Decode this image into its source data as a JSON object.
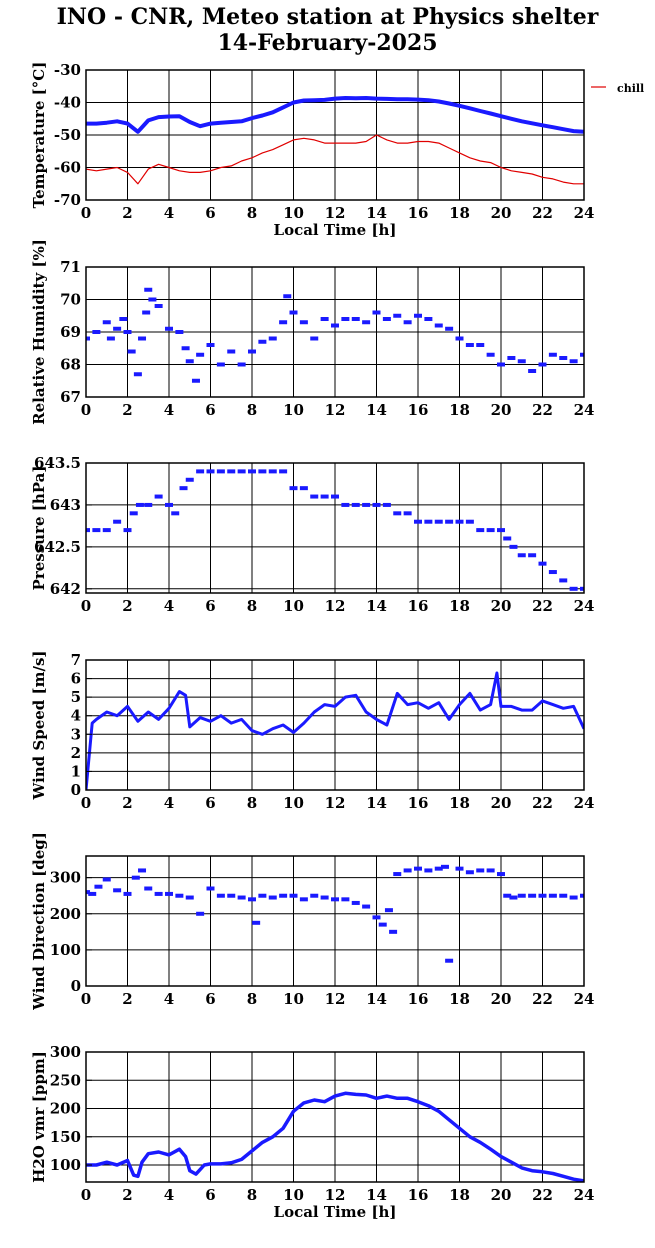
{
  "title_line1": "INO - CNR, Meteo station at Physics shelter",
  "title_line2": "14-February-2025",
  "colors": {
    "blue": "#1a1aff",
    "red": "#e00000",
    "grid": "#000000"
  },
  "chart_data": [
    {
      "type": "line",
      "id": "temperature",
      "ylabel": "Temperature [°C]",
      "xlabel": "Local Time [h]",
      "xlim": [
        0,
        24
      ],
      "xticks": [
        0,
        2,
        4,
        6,
        8,
        10,
        12,
        14,
        16,
        18,
        20,
        22,
        24
      ],
      "ylim": [
        -70,
        -30
      ],
      "yticks": [
        -70,
        -60,
        -50,
        -40,
        -30
      ],
      "legend": "top-right",
      "series": [
        {
          "name": "",
          "color": "#1a1aff",
          "width": 4,
          "x": [
            0,
            0.5,
            1,
            1.5,
            2,
            2.5,
            3,
            3.5,
            4,
            4.5,
            5,
            5.5,
            6,
            6.5,
            7,
            7.5,
            8,
            8.5,
            9,
            9.5,
            10,
            10.5,
            11,
            11.5,
            12,
            12.5,
            13,
            13.5,
            14,
            14.5,
            15,
            15.5,
            16,
            16.5,
            17,
            17.5,
            18,
            18.5,
            19,
            19.5,
            20,
            20.5,
            21,
            21.5,
            22,
            22.5,
            23,
            23.5,
            24
          ],
          "y": [
            -46.5,
            -46.5,
            -46.2,
            -45.8,
            -46.5,
            -49,
            -45.5,
            -44.5,
            -44.3,
            -44.2,
            -46,
            -47.3,
            -46.5,
            -46.2,
            -46,
            -45.8,
            -44.8,
            -44,
            -43,
            -41.5,
            -40,
            -39.4,
            -39.3,
            -39.2,
            -38.8,
            -38.6,
            -38.7,
            -38.6,
            -38.8,
            -38.9,
            -39,
            -39,
            -39.1,
            -39.3,
            -39.7,
            -40.3,
            -41,
            -41.8,
            -42.6,
            -43.4,
            -44.2,
            -45,
            -45.8,
            -46.4,
            -47,
            -47.6,
            -48.2,
            -48.8,
            -49
          ]
        },
        {
          "name": "chill",
          "color": "#e00000",
          "width": 1.2,
          "x": [
            0,
            0.5,
            1,
            1.5,
            2,
            2.5,
            3,
            3.5,
            4,
            4.5,
            5,
            5.5,
            6,
            6.5,
            7,
            7.5,
            8,
            8.5,
            9,
            9.5,
            10,
            10.5,
            11,
            11.5,
            12,
            12.5,
            13,
            13.5,
            14,
            14.5,
            15,
            15.5,
            16,
            16.5,
            17,
            17.5,
            18,
            18.5,
            19,
            19.5,
            20,
            20.5,
            21,
            21.5,
            22,
            22.5,
            23,
            23.5,
            24
          ],
          "y": [
            -60.5,
            -61,
            -60.5,
            -60,
            -61.5,
            -65,
            -60.5,
            -59,
            -60,
            -61,
            -61.5,
            -61.5,
            -61,
            -60,
            -59.5,
            -58,
            -57,
            -55.5,
            -54.5,
            -53,
            -51.5,
            -51,
            -51.5,
            -52.5,
            -52.5,
            -52.5,
            -52.5,
            -52,
            -50,
            -51.5,
            -52.5,
            -52.5,
            -52,
            -52,
            -52.5,
            -54,
            -55.5,
            -57,
            -58,
            -58.5,
            -60,
            -61,
            -61.5,
            -62,
            -63,
            -63.5,
            -64.5,
            -65,
            -65
          ]
        }
      ]
    },
    {
      "type": "scatter",
      "id": "humidity",
      "ylabel": "Relative Humidity [%]",
      "xlim": [
        0,
        24
      ],
      "xticks": [
        0,
        2,
        4,
        6,
        8,
        10,
        12,
        14,
        16,
        18,
        20,
        22,
        24
      ],
      "ylim": [
        67,
        71
      ],
      "yticks": [
        67,
        68,
        69,
        70,
        71
      ],
      "series": [
        {
          "name": "",
          "color": "#1a1aff",
          "x": [
            0,
            0.5,
            1,
            1.2,
            1.5,
            1.8,
            2,
            2.2,
            2.5,
            2.7,
            2.9,
            3,
            3.2,
            3.5,
            4,
            4.5,
            4.8,
            5,
            5.3,
            5.5,
            6,
            6.5,
            7,
            7.5,
            8,
            8.5,
            9,
            9.5,
            9.7,
            10,
            10.5,
            11,
            11.5,
            12,
            12.5,
            13,
            13.5,
            14,
            14.5,
            15,
            15.5,
            16,
            16.5,
            17,
            17.5,
            18,
            18.5,
            19,
            19.5,
            20,
            20.5,
            21,
            21.5,
            22,
            22.5,
            23,
            23.5,
            24
          ],
          "y": [
            68.8,
            69,
            69.3,
            68.8,
            69.1,
            69.4,
            69,
            68.4,
            67.7,
            68.8,
            69.6,
            70.3,
            70,
            69.8,
            69.1,
            69,
            68.5,
            68.1,
            67.5,
            68.3,
            68.6,
            68,
            68.4,
            68,
            68.4,
            68.7,
            68.8,
            69.3,
            70.1,
            69.6,
            69.3,
            68.8,
            69.4,
            69.2,
            69.4,
            69.4,
            69.3,
            69.6,
            69.4,
            69.5,
            69.3,
            69.5,
            69.4,
            69.2,
            69.1,
            68.8,
            68.6,
            68.6,
            68.3,
            68,
            68.2,
            68.1,
            67.8,
            68,
            68.3,
            68.2,
            68.1,
            68.3
          ]
        }
      ]
    },
    {
      "type": "scatter",
      "id": "pressure",
      "ylabel": "Pressure [hPa]",
      "xlim": [
        0,
        24
      ],
      "xticks": [
        0,
        2,
        4,
        6,
        8,
        10,
        12,
        14,
        16,
        18,
        20,
        22,
        24
      ],
      "ylim": [
        641.95,
        643.5
      ],
      "yticks": [
        642,
        642.5,
        643,
        643.5
      ],
      "series": [
        {
          "name": "",
          "color": "#1a1aff",
          "x": [
            0,
            0.5,
            1,
            1.5,
            2,
            2.3,
            2.6,
            3,
            3.5,
            4,
            4.3,
            4.7,
            5,
            5.5,
            6,
            6.5,
            7,
            7.5,
            8,
            8.5,
            9,
            9.5,
            10,
            10.5,
            11,
            11.5,
            12,
            12.5,
            13,
            13.5,
            14,
            14.5,
            15,
            15.5,
            16,
            16.5,
            17,
            17.5,
            18,
            18.5,
            19,
            19.5,
            20,
            20.3,
            20.6,
            21,
            21.5,
            22,
            22.5,
            23,
            23.5,
            24
          ],
          "y": [
            642.7,
            642.7,
            642.7,
            642.8,
            642.7,
            642.9,
            643,
            643,
            643.1,
            643,
            642.9,
            643.2,
            643.3,
            643.4,
            643.4,
            643.4,
            643.4,
            643.4,
            643.4,
            643.4,
            643.4,
            643.4,
            643.2,
            643.2,
            643.1,
            643.1,
            643.1,
            643,
            643,
            643,
            643,
            643,
            642.9,
            642.9,
            642.8,
            642.8,
            642.8,
            642.8,
            642.8,
            642.8,
            642.7,
            642.7,
            642.7,
            642.6,
            642.5,
            642.4,
            642.4,
            642.3,
            642.2,
            642.1,
            642,
            642
          ]
        }
      ]
    },
    {
      "type": "line",
      "id": "wind_speed",
      "ylabel": "Wind Speed [m/s]",
      "xlim": [
        0,
        24
      ],
      "xticks": [
        0,
        2,
        4,
        6,
        8,
        10,
        12,
        14,
        16,
        18,
        20,
        22,
        24
      ],
      "ylim": [
        0,
        7
      ],
      "yticks": [
        0,
        1,
        2,
        3,
        4,
        5,
        6,
        7
      ],
      "series": [
        {
          "name": "",
          "color": "#1a1aff",
          "width": 3,
          "x": [
            0,
            0.3,
            0.5,
            1,
            1.5,
            2,
            2.5,
            3,
            3.5,
            4,
            4.5,
            4.8,
            5,
            5.5,
            6,
            6.5,
            7,
            7.5,
            8,
            8.5,
            9,
            9.5,
            10,
            10.5,
            11,
            11.5,
            12,
            12.5,
            13,
            13.5,
            14,
            14.5,
            15,
            15.5,
            16,
            16.5,
            17,
            17.5,
            18,
            18.5,
            19,
            19.5,
            19.8,
            20,
            20.5,
            21,
            21.5,
            22,
            22.5,
            23,
            23.5,
            24
          ],
          "y": [
            0,
            3.6,
            3.8,
            4.2,
            4,
            4.5,
            3.7,
            4.2,
            3.8,
            4.4,
            5.3,
            5.1,
            3.4,
            3.9,
            3.7,
            4,
            3.6,
            3.8,
            3.2,
            3,
            3.3,
            3.5,
            3.1,
            3.6,
            4.2,
            4.6,
            4.5,
            5,
            5.1,
            4.2,
            3.8,
            3.5,
            5.2,
            4.6,
            4.7,
            4.4,
            4.7,
            3.8,
            4.6,
            5.2,
            4.3,
            4.6,
            6.3,
            4.5,
            4.5,
            4.3,
            4.3,
            4.8,
            4.6,
            4.4,
            4.5,
            3.3
          ]
        }
      ]
    },
    {
      "type": "scatter",
      "id": "wind_direction",
      "ylabel": "Wind Direction [deg]",
      "xlim": [
        0,
        24
      ],
      "xticks": [
        0,
        2,
        4,
        6,
        8,
        10,
        12,
        14,
        16,
        18,
        20,
        22,
        24
      ],
      "ylim": [
        0,
        360
      ],
      "yticks": [
        0,
        100,
        200,
        300
      ],
      "series": [
        {
          "name": "",
          "color": "#1a1aff",
          "x": [
            0,
            0.3,
            0.6,
            1,
            1.5,
            2,
            2.4,
            2.7,
            3,
            3.5,
            4,
            4.5,
            5,
            5.5,
            6,
            6.5,
            7,
            7.5,
            8,
            8.2,
            8.5,
            9,
            9.5,
            10,
            10.5,
            11,
            11.5,
            12,
            12.5,
            13,
            13.5,
            14,
            14.3,
            14.6,
            14.8,
            15,
            15.5,
            16,
            16.5,
            17,
            17.3,
            17.5,
            18,
            18.5,
            19,
            19.5,
            20,
            20.3,
            20.6,
            21,
            21.5,
            22,
            22.5,
            23,
            23.5,
            24
          ],
          "y": [
            260,
            255,
            275,
            295,
            265,
            255,
            300,
            320,
            270,
            255,
            255,
            250,
            245,
            200,
            270,
            250,
            250,
            245,
            240,
            175,
            250,
            245,
            250,
            250,
            240,
            250,
            245,
            240,
            240,
            230,
            220,
            190,
            170,
            210,
            150,
            310,
            320,
            325,
            320,
            325,
            330,
            70,
            325,
            315,
            320,
            320,
            310,
            250,
            245,
            250,
            250,
            250,
            250,
            250,
            245,
            250
          ]
        }
      ]
    },
    {
      "type": "line",
      "id": "h2o_vmr",
      "ylabel": "H2O vmr [ppm]",
      "xlabel": "Local Time [h]",
      "xlim": [
        0,
        24
      ],
      "xticks": [
        0,
        2,
        4,
        6,
        8,
        10,
        12,
        14,
        16,
        18,
        20,
        22,
        24
      ],
      "ylim": [
        70,
        300
      ],
      "yticks": [
        100,
        150,
        200,
        250,
        300
      ],
      "series": [
        {
          "name": "",
          "color": "#1a1aff",
          "width": 3.5,
          "x": [
            0,
            0.5,
            1,
            1.5,
            2,
            2.3,
            2.5,
            2.7,
            3,
            3.5,
            4,
            4.5,
            4.8,
            5,
            5.3,
            5.7,
            6,
            6.5,
            7,
            7.5,
            8,
            8.5,
            9,
            9.5,
            10,
            10.5,
            11,
            11.5,
            12,
            12.5,
            13,
            13.5,
            14,
            14.5,
            15,
            15.5,
            16,
            16.5,
            17,
            17.5,
            18,
            18.5,
            19,
            19.5,
            20,
            20.5,
            21,
            21.5,
            22,
            22.5,
            23,
            23.5,
            24
          ],
          "y": [
            100,
            100,
            105,
            100,
            108,
            82,
            80,
            105,
            120,
            123,
            118,
            128,
            115,
            90,
            84,
            100,
            102,
            102,
            104,
            110,
            125,
            140,
            150,
            165,
            195,
            210,
            215,
            212,
            222,
            227,
            225,
            224,
            218,
            222,
            218,
            218,
            212,
            205,
            195,
            180,
            165,
            150,
            140,
            128,
            115,
            105,
            95,
            90,
            88,
            85,
            80,
            75,
            72
          ]
        }
      ]
    }
  ]
}
